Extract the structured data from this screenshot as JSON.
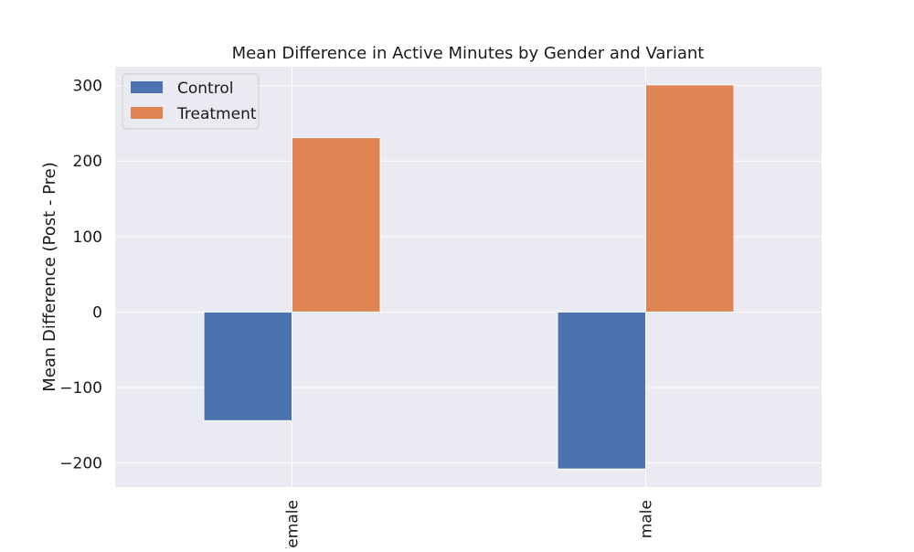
{
  "chart_data": {
    "type": "bar",
    "title": "Mean Difference in Active Minutes by Gender and Variant",
    "xlabel": "",
    "ylabel": "Mean Difference (Post - Pre)",
    "categories": [
      "female",
      "male"
    ],
    "series": [
      {
        "name": "Control",
        "values": [
          -144,
          -208
        ],
        "color": "#4c72b0"
      },
      {
        "name": "Treatment",
        "values": [
          231,
          301
        ],
        "color": "#dd8452"
      }
    ],
    "ylim": [
      -232,
      325
    ],
    "yticks": [
      -200,
      -100,
      0,
      100,
      200,
      300
    ],
    "ytick_labels": [
      "−200",
      "−100",
      "0",
      "100",
      "200",
      "300"
    ],
    "grid": true,
    "legend_position": "top-left",
    "background_color": "#eaeaf2",
    "grid_color": "#ffffff"
  }
}
